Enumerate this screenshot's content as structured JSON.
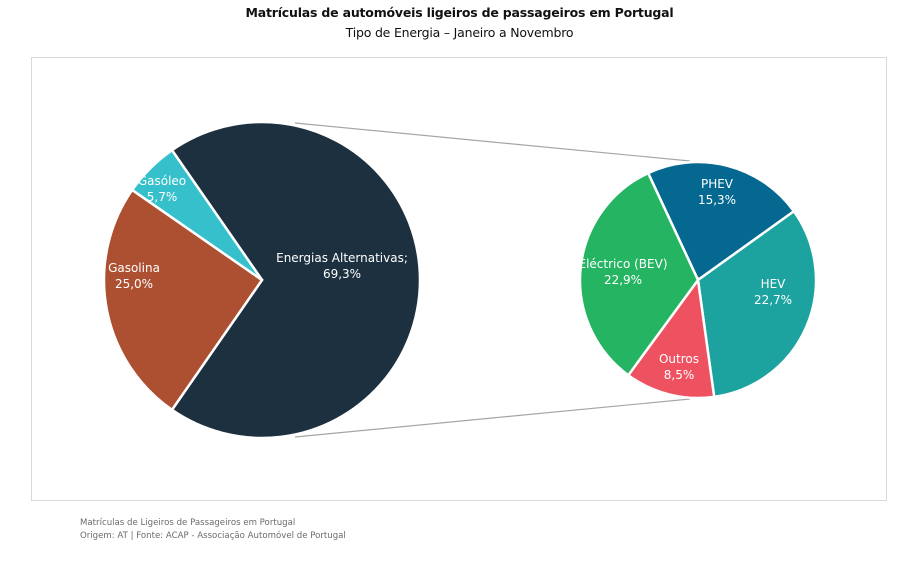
{
  "header": {
    "title": "Matrículas de automóveis ligeiros de passageiros em Portugal",
    "subtitle": "Tipo de Energia – Janeiro a Novembro"
  },
  "chart_data": {
    "type": "pie",
    "subtype": "pie-of-pie",
    "title": "Matrículas de automóveis ligeiros de passageiros em Portugal",
    "subtitle": "Tipo de Energia – Janeiro a Novembro",
    "main_pie": [
      {
        "name": "Energias Alternativas",
        "value": 69.3,
        "label": "Energias Alternativas;",
        "value_label": "69,3%",
        "color": "#1d3040"
      },
      {
        "name": "Gasolina",
        "value": 25.0,
        "label": "Gasolina",
        "value_label": "25,0%",
        "color": "#ad5031"
      },
      {
        "name": "Gasóleo",
        "value": 5.7,
        "label": "Gasóleo",
        "value_label": "5,7%",
        "color": "#36c0cc"
      }
    ],
    "secondary_pie": [
      {
        "name": "PHEV",
        "value": 15.3,
        "label": "PHEV",
        "value_label": "15,3%",
        "color": "#046890"
      },
      {
        "name": "HEV",
        "value": 22.7,
        "label": "HEV",
        "value_label": "22,7%",
        "color": "#1ca39f"
      },
      {
        "name": "Outros",
        "value": 8.5,
        "label": "Outros",
        "value_label": "8,5%",
        "color": "#ee5260"
      },
      {
        "name": "Eléctrico (BEV)",
        "value": 22.9,
        "label": "Eléctrico (BEV)",
        "value_label": "22,9%",
        "color": "#25b562"
      }
    ],
    "legend": "none"
  },
  "footer": {
    "line1": "Matrículas de Ligeiros de Passageiros em Portugal",
    "line2": "Origem: AT | Fonte: ACAP - Associação Automóvel de Portugal"
  }
}
